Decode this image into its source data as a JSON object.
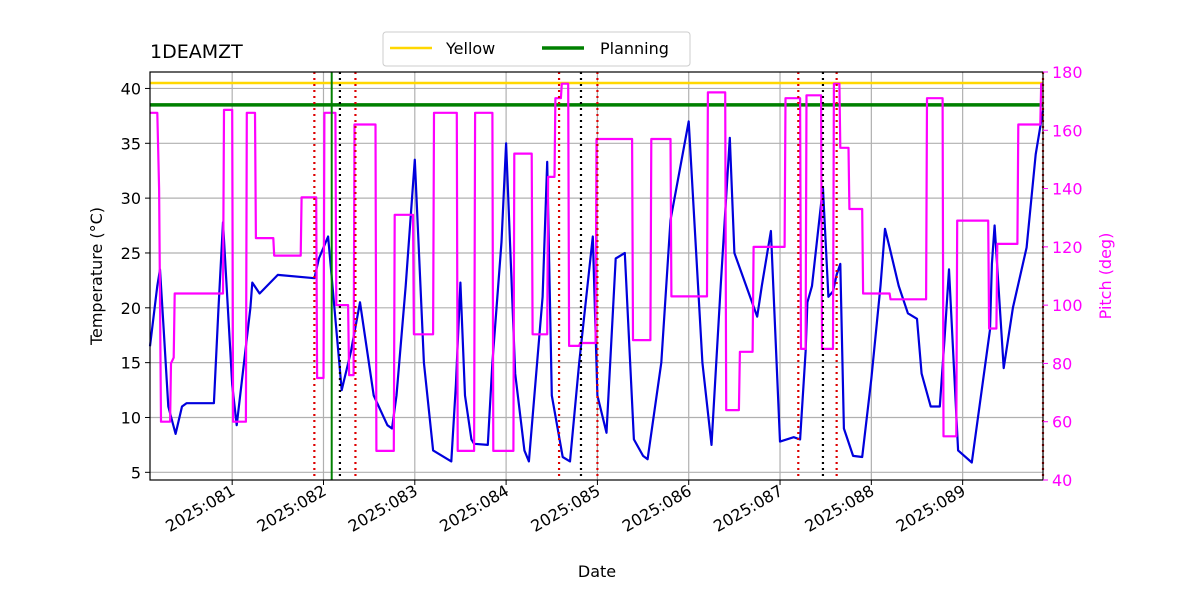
{
  "chart_data": {
    "type": "line",
    "title": "1DEAMZT",
    "xlabel": "Date",
    "ylabel": "Temperature ($^\\circ$C)",
    "ylabel_display": "Temperature (°C)",
    "y2label": "Pitch (deg)",
    "xlim": [
      80.1,
      89.88
    ],
    "ylim": [
      4.3,
      41.5
    ],
    "y2lim": [
      40,
      180
    ],
    "x_ticks": [
      81,
      82,
      83,
      84,
      85,
      86,
      87,
      88,
      89
    ],
    "x_tick_labels": [
      "2025:081",
      "2025:082",
      "2025:083",
      "2025:084",
      "2025:085",
      "2025:086",
      "2025:087",
      "2025:088",
      "2025:089"
    ],
    "y_ticks": [
      5,
      10,
      15,
      20,
      25,
      30,
      35,
      40
    ],
    "y_tick_labels": [
      "5",
      "10",
      "15",
      "20",
      "25",
      "30",
      "35",
      "40"
    ],
    "y2_ticks": [
      40,
      60,
      80,
      100,
      120,
      140,
      160,
      180
    ],
    "y2_tick_labels": [
      "40",
      "60",
      "80",
      "100",
      "120",
      "140",
      "160",
      "180"
    ],
    "grid": true,
    "legend": {
      "placement": "top-center-outside",
      "entries": [
        "Yellow",
        "Planning"
      ]
    },
    "limits": [
      {
        "name": "Yellow",
        "value": 40.5,
        "color": "#ffd700"
      },
      {
        "name": "Planning",
        "value": 38.5,
        "color": "#008000"
      }
    ],
    "markers": {
      "planning_start": {
        "x": 82.09,
        "color": "#008000"
      },
      "red_dotted": [
        81.9,
        82.35,
        84.58,
        85.0,
        87.2,
        87.62,
        89.88
      ],
      "black_dotted": [
        82.18,
        84.82,
        87.47
      ]
    },
    "series": [
      {
        "name": "Temperature",
        "axis": "left",
        "color": "#0000dd",
        "x": [
          80.1,
          80.18,
          80.21,
          80.25,
          80.3,
          80.38,
          80.45,
          80.5,
          80.52,
          80.6,
          80.8,
          80.85,
          80.9,
          81.0,
          81.05,
          81.2,
          81.22,
          81.3,
          81.5,
          81.9,
          81.95,
          82.05,
          82.2,
          82.3,
          82.4,
          82.55,
          82.7,
          82.75,
          82.8,
          82.9,
          83.0,
          83.1,
          83.2,
          83.4,
          83.45,
          83.5,
          83.55,
          83.62,
          83.65,
          83.8,
          83.85,
          83.95,
          84.0,
          84.1,
          84.2,
          84.25,
          84.4,
          84.45,
          84.5,
          84.62,
          84.7,
          84.8,
          84.95,
          85.0,
          85.1,
          85.2,
          85.3,
          85.4,
          85.5,
          85.55,
          85.7,
          85.8,
          86.0,
          86.15,
          86.25,
          86.35,
          86.45,
          86.5,
          86.75,
          86.8,
          86.9,
          87.0,
          87.15,
          87.22,
          87.28,
          87.3,
          87.35,
          87.47,
          87.53,
          87.58,
          87.62,
          87.66,
          87.7,
          87.8,
          87.9,
          88.0,
          88.1,
          88.15,
          88.2,
          88.3,
          88.4,
          88.5,
          88.55,
          88.65,
          88.75,
          88.8,
          88.85,
          88.95,
          89.1,
          89.3,
          89.32,
          89.35,
          89.45,
          89.55,
          89.7,
          89.8,
          89.88
        ],
        "y": [
          16.5,
          22.0,
          23.5,
          18.0,
          11.0,
          8.5,
          11.0,
          11.3,
          11.3,
          11.3,
          11.3,
          20.0,
          27.8,
          13.0,
          9.3,
          20.0,
          22.3,
          21.3,
          23.0,
          22.7,
          24.5,
          26.5,
          12.5,
          16.0,
          20.5,
          12.0,
          9.3,
          9.0,
          12.0,
          22.0,
          33.5,
          15.0,
          7.0,
          6.0,
          13.0,
          22.3,
          12.0,
          8.0,
          7.6,
          7.5,
          15.0,
          26.0,
          35.0,
          14.0,
          7.0,
          6.0,
          21.0,
          33.3,
          12.0,
          6.4,
          6.0,
          15.0,
          26.5,
          12.0,
          8.6,
          24.5,
          25.0,
          8.0,
          6.5,
          6.2,
          15.0,
          28.0,
          37.0,
          15.0,
          7.5,
          22.0,
          35.5,
          25.0,
          19.2,
          22.0,
          27.0,
          7.8,
          8.2,
          8.0,
          16.0,
          20.5,
          22.0,
          31.0,
          21.0,
          21.5,
          23.0,
          24.0,
          9.0,
          6.5,
          6.4,
          13.5,
          22.0,
          27.2,
          25.5,
          22.0,
          19.5,
          19.0,
          14.0,
          11.0,
          11.0,
          17.0,
          23.5,
          7.0,
          5.9,
          18.0,
          24.0,
          27.5,
          14.5,
          20.0,
          25.5,
          34.0,
          38.0
        ],
        "style": "solid"
      },
      {
        "name": "Pitch",
        "axis": "right",
        "color": "#ff00ff",
        "x": [
          80.1,
          80.18,
          80.2,
          80.22,
          80.32,
          80.33,
          80.36,
          80.37,
          80.9,
          80.91,
          81.0,
          81.01,
          81.15,
          81.16,
          81.25,
          81.26,
          81.3,
          81.45,
          81.46,
          81.75,
          81.76,
          81.92,
          81.93,
          82.0,
          82.01,
          82.13,
          82.14,
          82.27,
          82.28,
          82.33,
          82.34,
          82.57,
          82.58,
          82.77,
          82.78,
          82.98,
          82.99,
          83.2,
          83.21,
          83.46,
          83.47,
          83.65,
          83.66,
          83.85,
          83.86,
          84.08,
          84.09,
          84.28,
          84.29,
          84.45,
          84.46,
          84.53,
          84.54,
          84.6,
          84.61,
          84.68,
          84.69,
          84.8,
          84.81,
          84.98,
          84.99,
          85.38,
          85.39,
          85.58,
          85.59,
          85.8,
          85.81,
          86.2,
          86.21,
          86.4,
          86.41,
          86.55,
          86.56,
          86.7,
          86.71,
          87.05,
          87.06,
          87.22,
          87.23,
          87.28,
          87.29,
          87.45,
          87.46,
          87.58,
          87.59,
          87.65,
          87.66,
          87.75,
          87.76,
          87.9,
          87.91,
          88.2,
          88.21,
          88.6,
          88.61,
          88.78,
          88.79,
          88.93,
          88.94,
          89.28,
          89.29,
          89.37,
          89.38,
          89.6,
          89.61,
          89.85,
          89.86,
          89.88
        ],
        "y": [
          166,
          166,
          140,
          60,
          60,
          80,
          82,
          104,
          104,
          167,
          167,
          60,
          60,
          166,
          166,
          123,
          123,
          123,
          117,
          117,
          137,
          137,
          75,
          75,
          166,
          166,
          100,
          100,
          76,
          76,
          162,
          162,
          50,
          50,
          131,
          131,
          90,
          90,
          166,
          166,
          50,
          50,
          166,
          166,
          50,
          50,
          152,
          152,
          90,
          90,
          144,
          144,
          171,
          171,
          176,
          176,
          86,
          86,
          87,
          87,
          157,
          157,
          88,
          88,
          157,
          157,
          103,
          103,
          173,
          173,
          64,
          64,
          84,
          84,
          120,
          120,
          171,
          171,
          85,
          85,
          172,
          172,
          85,
          85,
          176,
          176,
          154,
          154,
          133,
          133,
          104,
          104,
          102,
          102,
          171,
          171,
          55,
          55,
          129,
          129,
          92,
          92,
          121,
          121,
          162,
          162,
          176,
          176
        ],
        "style": "step"
      }
    ]
  }
}
